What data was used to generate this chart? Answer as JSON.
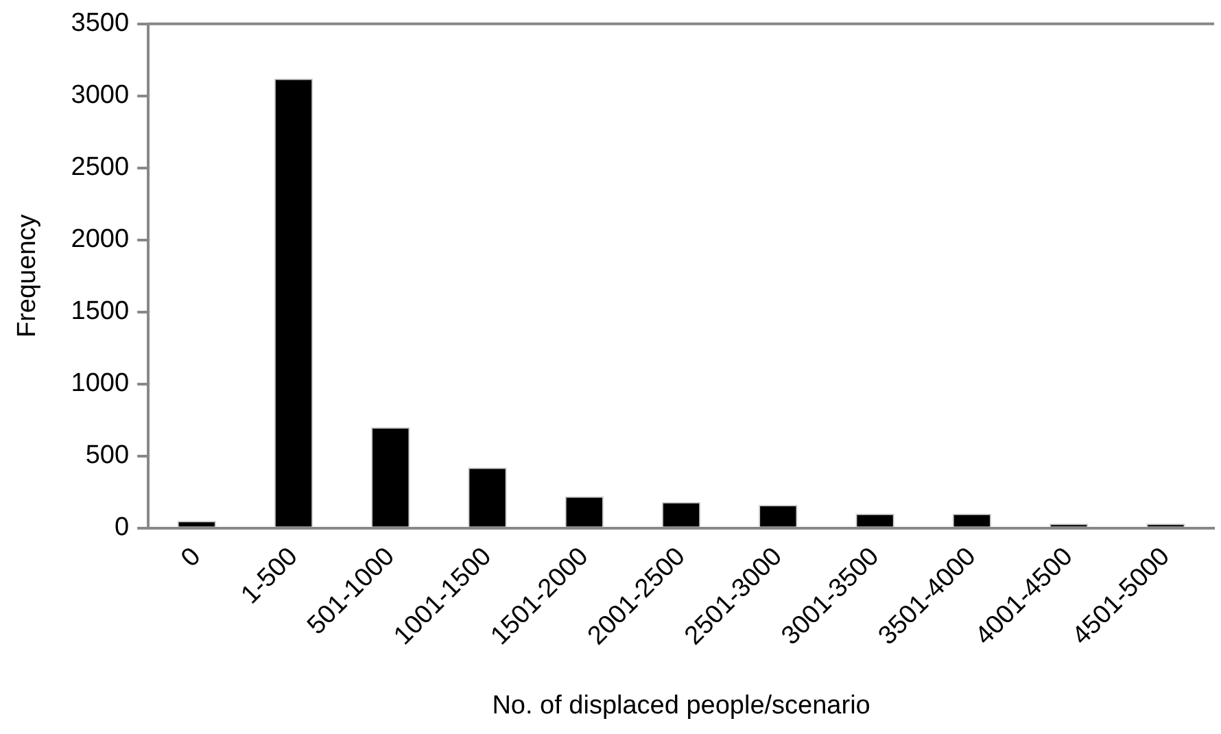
{
  "chart_data": {
    "type": "bar",
    "xlabel": "No. of displaced people/scenario",
    "ylabel": "Frequency",
    "categories": [
      "0",
      "1-500",
      "501-1000",
      "1001-1500",
      "1501-2000",
      "2001-2500",
      "2501-3000",
      "3001-3500",
      "3501-4000",
      "4001-4500",
      "4501-5000"
    ],
    "values": [
      50,
      3120,
      700,
      420,
      220,
      180,
      160,
      100,
      100,
      30,
      30
    ],
    "color": "#000000",
    "ylim": [
      0,
      3500
    ],
    "yticks": [
      0,
      500,
      1000,
      1500,
      2000,
      2500,
      3000,
      3500
    ],
    "grid": false,
    "legend": false
  }
}
